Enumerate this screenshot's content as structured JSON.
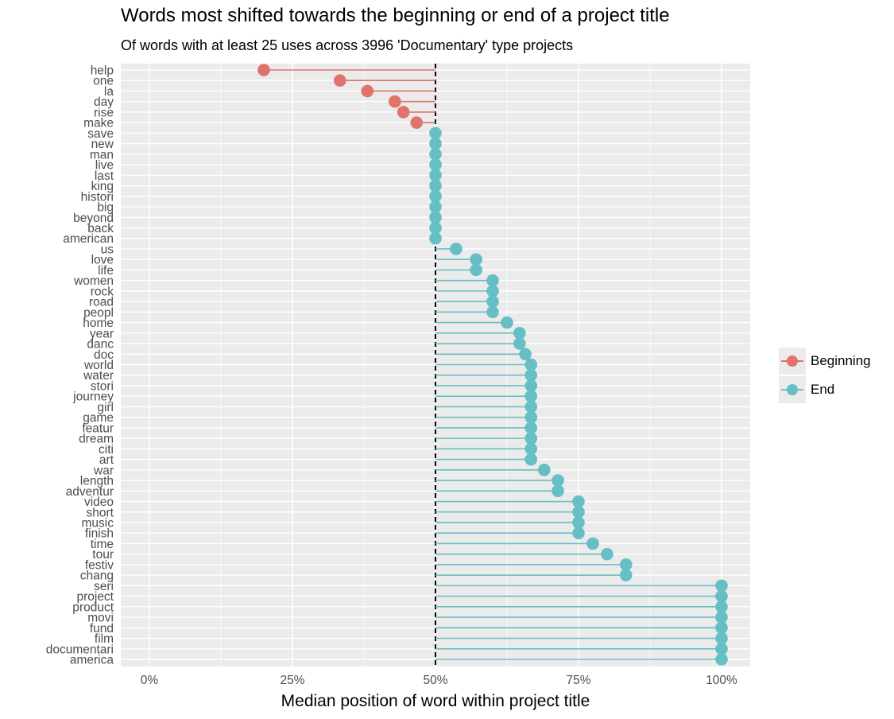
{
  "chart_data": {
    "type": "lollipop",
    "title": "Words most shifted towards the beginning or end of a project title",
    "subtitle": "Of words with at least 25 uses across 3996 'Documentary' type projects",
    "xlabel": "Median position of word within project title",
    "ylabel": "",
    "xlim": [
      -0.06,
      1.06
    ],
    "x_ticks": [
      0,
      0.25,
      0.5,
      0.75,
      1.0
    ],
    "x_tick_labels": [
      "0%",
      "25%",
      "50%",
      "75%",
      "100%"
    ],
    "baseline": 0.5,
    "grid": true,
    "legend_position": "right",
    "legend": [
      {
        "name": "Beginning",
        "color": "#e0736b"
      },
      {
        "name": "End",
        "color": "#66bfc4"
      }
    ],
    "words": [
      "help",
      "one",
      "la",
      "day",
      "rise",
      "make",
      "save",
      "new",
      "man",
      "live",
      "last",
      "king",
      "histori",
      "big",
      "beyond",
      "back",
      "american",
      "us",
      "love",
      "life",
      "women",
      "rock",
      "road",
      "peopl",
      "home",
      "year",
      "danc",
      "doc",
      "world",
      "water",
      "stori",
      "journey",
      "girl",
      "game",
      "featur",
      "dream",
      "citi",
      "art",
      "war",
      "length",
      "adventur",
      "video",
      "short",
      "music",
      "finish",
      "time",
      "tour",
      "festiv",
      "chang",
      "seri",
      "project",
      "product",
      "movi",
      "fund",
      "film",
      "documentari",
      "america"
    ],
    "values": [
      0.2,
      0.333,
      0.381,
      0.429,
      0.444,
      0.467,
      0.5,
      0.5,
      0.5,
      0.5,
      0.5,
      0.5,
      0.5,
      0.5,
      0.5,
      0.5,
      0.5,
      0.536,
      0.571,
      0.571,
      0.6,
      0.6,
      0.6,
      0.6,
      0.625,
      0.647,
      0.647,
      0.657,
      0.667,
      0.667,
      0.667,
      0.667,
      0.667,
      0.667,
      0.667,
      0.667,
      0.667,
      0.667,
      0.69,
      0.714,
      0.714,
      0.75,
      0.75,
      0.75,
      0.75,
      0.775,
      0.8,
      0.833,
      0.833,
      1.0,
      1.0,
      1.0,
      1.0,
      1.0,
      1.0,
      1.0,
      1.0
    ],
    "groups": [
      "Beginning",
      "Beginning",
      "Beginning",
      "Beginning",
      "Beginning",
      "Beginning",
      "End",
      "End",
      "End",
      "End",
      "End",
      "End",
      "End",
      "End",
      "End",
      "End",
      "End",
      "End",
      "End",
      "End",
      "End",
      "End",
      "End",
      "End",
      "End",
      "End",
      "End",
      "End",
      "End",
      "End",
      "End",
      "End",
      "End",
      "End",
      "End",
      "End",
      "End",
      "End",
      "End",
      "End",
      "End",
      "End",
      "End",
      "End",
      "End",
      "End",
      "End",
      "End",
      "End",
      "End",
      "End",
      "End",
      "End",
      "End",
      "End",
      "End",
      "End"
    ]
  }
}
